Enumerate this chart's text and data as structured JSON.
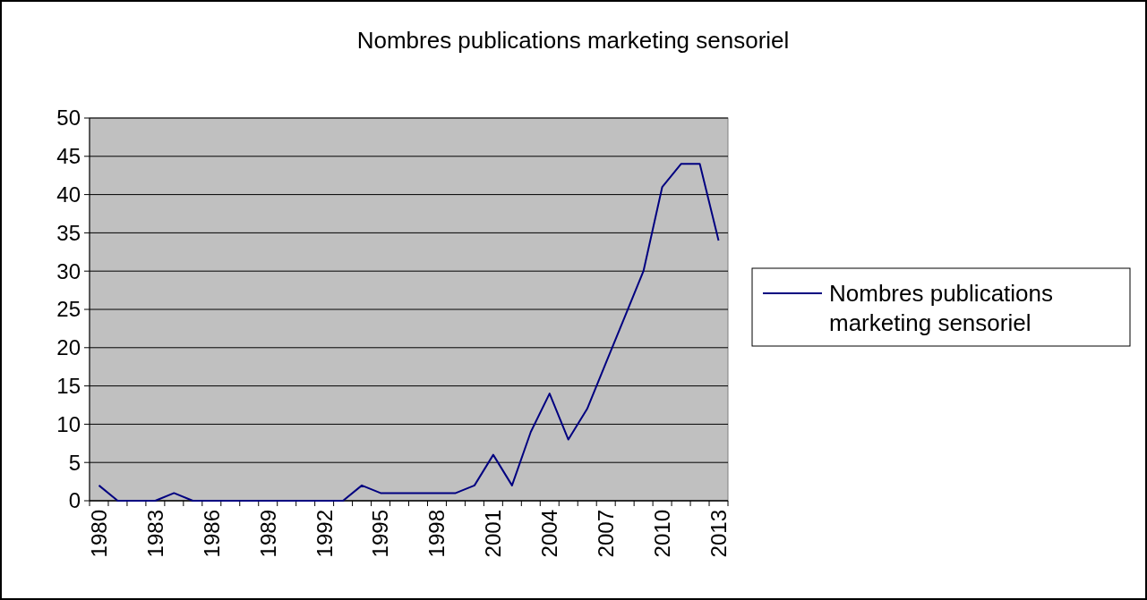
{
  "chart_data": {
    "type": "line",
    "title": "Nombres publications marketing sensoriel",
    "categories": [
      "1980",
      null,
      null,
      "1983",
      null,
      null,
      "1986",
      null,
      null,
      "1989",
      null,
      null,
      "1992",
      null,
      null,
      "1995",
      null,
      null,
      "1998",
      null,
      null,
      "2001",
      null,
      null,
      "2004",
      null,
      null,
      "2007",
      null,
      null,
      "2010",
      null,
      null,
      "2013"
    ],
    "series": [
      {
        "name": "Nombres publications marketing sensoriel",
        "color": "#000080",
        "values": [
          2,
          0,
          0,
          0,
          1,
          0,
          0,
          0,
          0,
          0,
          0,
          0,
          0,
          0,
          2,
          1,
          1,
          1,
          1,
          1,
          2,
          6,
          2,
          9,
          14,
          8,
          12,
          18,
          24,
          30,
          41,
          44,
          44,
          34
        ]
      }
    ],
    "ylim": [
      0,
      50
    ],
    "yticks": [
      0,
      5,
      10,
      15,
      20,
      25,
      30,
      35,
      40,
      45,
      50
    ],
    "grid": "y",
    "legend": "right",
    "marker": "none",
    "line_style": "solid"
  }
}
